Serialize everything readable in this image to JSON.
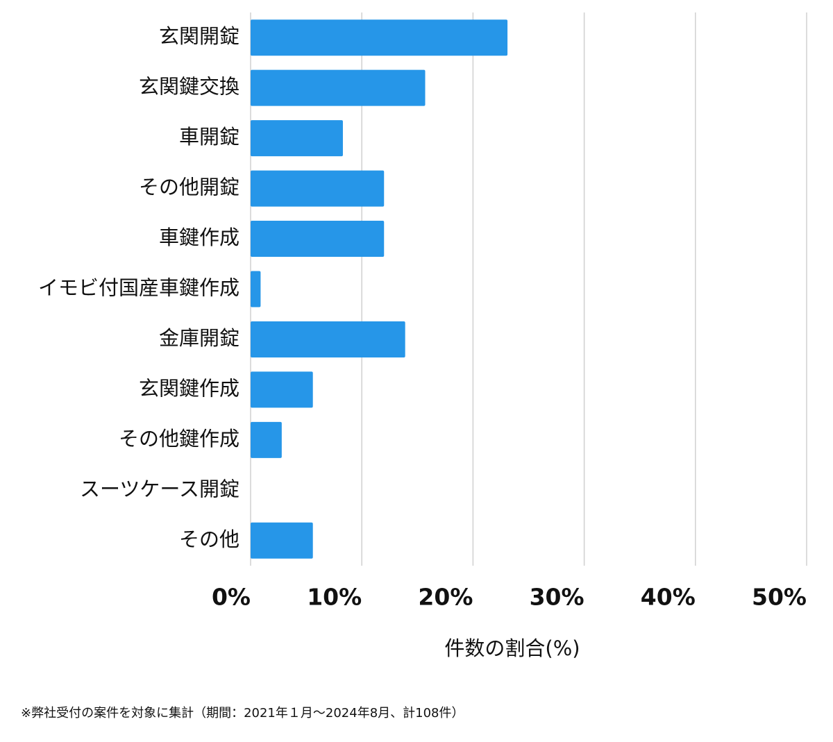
{
  "chart_data": {
    "type": "bar",
    "orientation": "horizontal",
    "categories": [
      "玄関開錠",
      "玄関鍵交換",
      "車開錠",
      "その他開錠",
      "車鍵作成",
      "イモビ付国産車鍵作成",
      "金庫開錠",
      "玄関鍵作成",
      "その他鍵作成",
      "スーツケース開錠",
      "その他"
    ],
    "values": [
      23.1,
      15.7,
      8.3,
      12.0,
      12.0,
      0.9,
      13.9,
      5.6,
      2.8,
      0,
      5.6
    ],
    "color": "#2696e8",
    "xlim": [
      0,
      50
    ],
    "xticks": [
      {
        "value": 0,
        "label": "0%"
      },
      {
        "value": 10,
        "label": "10%"
      },
      {
        "value": 20,
        "label": "20%"
      },
      {
        "value": 30,
        "label": "30%"
      },
      {
        "value": 40,
        "label": "40%"
      },
      {
        "value": 50,
        "label": "50%"
      }
    ],
    "xlabel": "件数の割合(%)",
    "grid": true,
    "footnote": "※弊社受付の案件を対象に集計（期間：2021年１月〜2024年8月、計108件）"
  }
}
